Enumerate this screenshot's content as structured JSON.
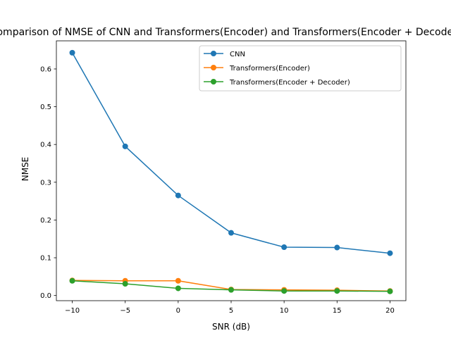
{
  "chart_data": {
    "type": "line",
    "title": "Comparison of NMSE of CNN and Transformers(Encoder) and Transformers(Encoder + Decoder)",
    "xlabel": "SNR (dB)",
    "ylabel": "NMSE",
    "x": [
      -10,
      -5,
      0,
      5,
      10,
      15,
      20
    ],
    "xlim": [
      -11.5,
      21.5
    ],
    "ylim": [
      -0.0137,
      0.6745
    ],
    "xticks": [
      -10,
      -5,
      0,
      5,
      10,
      15,
      20
    ],
    "xtick_labels": [
      "−10",
      "−5",
      "0",
      "5",
      "10",
      "15",
      "20"
    ],
    "yticks": [
      0.0,
      0.1,
      0.2,
      0.3,
      0.4,
      0.5,
      0.6
    ],
    "ytick_labels": [
      "0.0",
      "0.1",
      "0.2",
      "0.3",
      "0.4",
      "0.5",
      "0.6"
    ],
    "grid": false,
    "legend_position": "upper right",
    "series": [
      {
        "name": "CNN",
        "color": "#1f77b4",
        "values": [
          0.643,
          0.395,
          0.265,
          0.166,
          0.128,
          0.127,
          0.112
        ]
      },
      {
        "name": "Transformers(Encoder)",
        "color": "#ff7f0e",
        "values": [
          0.04,
          0.039,
          0.039,
          0.016,
          0.015,
          0.014,
          0.012
        ]
      },
      {
        "name": "Transformers(Encoder + Decoder)",
        "color": "#2ca02c",
        "values": [
          0.039,
          0.031,
          0.019,
          0.015,
          0.012,
          0.012,
          0.011
        ]
      }
    ]
  }
}
